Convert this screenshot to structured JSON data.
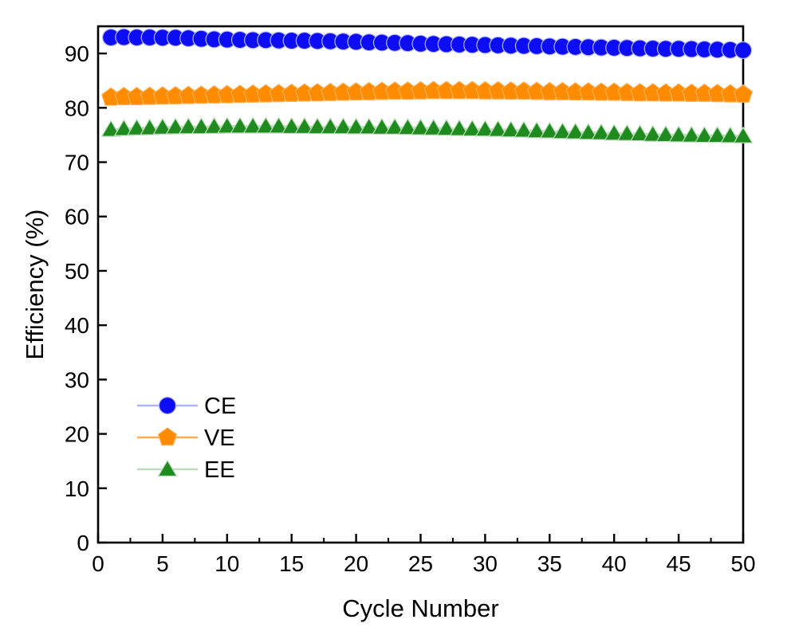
{
  "figure": {
    "background": "#ffffff"
  },
  "chart_data": {
    "type": "scatter",
    "title": "",
    "xlabel": "Cycle Number",
    "ylabel": "Efficiency (%)",
    "xlim": [
      0,
      50
    ],
    "ylim": [
      0,
      95
    ],
    "grid": false,
    "axis_color": "#000000",
    "x_major_ticks": [
      0,
      5,
      10,
      15,
      20,
      25,
      30,
      35,
      40,
      45,
      50
    ],
    "x_minor_ticks": [
      2.5,
      7.5,
      12.5,
      17.5,
      22.5,
      27.5,
      32.5,
      37.5,
      42.5,
      47.5
    ],
    "y_major_ticks": [
      0,
      10,
      20,
      30,
      40,
      50,
      60,
      70,
      80,
      90
    ],
    "legend": {
      "position": "inside-lower-left",
      "entries": [
        "CE",
        "VE",
        "EE"
      ]
    },
    "x": [
      1,
      2,
      3,
      4,
      5,
      6,
      7,
      8,
      9,
      10,
      11,
      12,
      13,
      14,
      15,
      16,
      17,
      18,
      19,
      20,
      21,
      22,
      23,
      24,
      25,
      26,
      27,
      28,
      29,
      30,
      31,
      32,
      33,
      34,
      35,
      36,
      37,
      38,
      39,
      40,
      41,
      42,
      43,
      44,
      45,
      46,
      47,
      48,
      49,
      50
    ],
    "series": [
      {
        "name": "CE",
        "marker": "circle",
        "color": "#0d0df5",
        "line_color": "#b0b4f2",
        "values": [
          92.95,
          93.0,
          92.95,
          92.95,
          92.9,
          92.9,
          92.8,
          92.7,
          92.6,
          92.55,
          92.5,
          92.45,
          92.45,
          92.4,
          92.35,
          92.35,
          92.3,
          92.25,
          92.2,
          92.15,
          92.05,
          92.0,
          91.95,
          91.9,
          91.8,
          91.75,
          91.7,
          91.65,
          91.6,
          91.55,
          91.5,
          91.45,
          91.4,
          91.35,
          91.3,
          91.25,
          91.2,
          91.15,
          91.1,
          91.05,
          91.0,
          90.95,
          90.9,
          90.85,
          90.85,
          90.8,
          90.75,
          90.7,
          90.65,
          90.6
        ]
      },
      {
        "name": "VE",
        "marker": "pentagon",
        "color": "#ff8c00",
        "line_color": "#ffae55",
        "values": [
          81.9,
          82.0,
          82.0,
          82.05,
          82.1,
          82.15,
          82.2,
          82.25,
          82.3,
          82.35,
          82.4,
          82.45,
          82.5,
          82.55,
          82.6,
          82.65,
          82.7,
          82.75,
          82.8,
          82.85,
          82.9,
          82.95,
          83.0,
          83.0,
          83.05,
          83.1,
          83.1,
          83.1,
          83.1,
          83.05,
          83.05,
          83.0,
          83.0,
          82.95,
          82.9,
          82.9,
          82.85,
          82.85,
          82.8,
          82.8,
          82.75,
          82.7,
          82.7,
          82.65,
          82.65,
          82.6,
          82.6,
          82.55,
          82.5,
          82.45
        ]
      },
      {
        "name": "EE",
        "marker": "triangle-up",
        "color": "#1f8b1f",
        "line_color": "#bedcbe",
        "values": [
          76.0,
          76.15,
          76.25,
          76.3,
          76.4,
          76.45,
          76.5,
          76.5,
          76.55,
          76.6,
          76.6,
          76.6,
          76.6,
          76.6,
          76.55,
          76.55,
          76.5,
          76.5,
          76.5,
          76.45,
          76.45,
          76.4,
          76.4,
          76.35,
          76.3,
          76.25,
          76.2,
          76.15,
          76.1,
          76.05,
          76.0,
          75.9,
          75.85,
          75.75,
          75.7,
          75.6,
          75.55,
          75.45,
          75.4,
          75.3,
          75.25,
          75.2,
          75.1,
          75.05,
          75.0,
          74.95,
          74.9,
          74.9,
          74.85,
          74.8
        ]
      }
    ]
  }
}
